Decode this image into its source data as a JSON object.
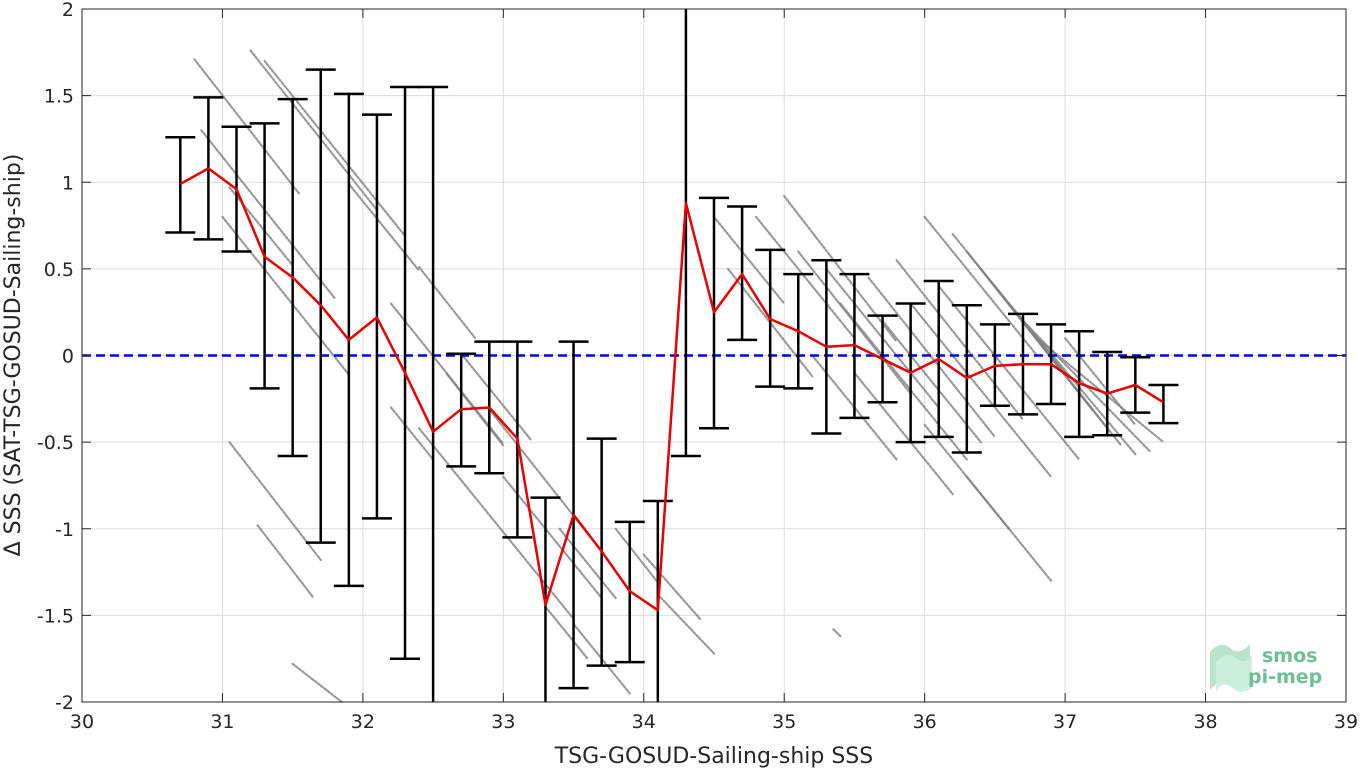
{
  "chart_data": {
    "type": "scatter",
    "xlabel": "TSG-GOSUD-Sailing-ship SSS",
    "ylabel": "Δ SSS (SAT-TSG-GOSUD-Sailing-ship)",
    "xlim": [
      30,
      39
    ],
    "ylim": [
      -2,
      2
    ],
    "x_ticks": [
      "30",
      "31",
      "32",
      "33",
      "34",
      "35",
      "36",
      "37",
      "38",
      "39"
    ],
    "y_ticks": [
      "2",
      "1.5",
      "1",
      "0.5",
      "0",
      "-0.5",
      "-1",
      "-1.5",
      "-2"
    ],
    "grid": true,
    "reference_line": {
      "y": 0,
      "style": "dashed",
      "color": "#0000e6"
    },
    "series": [
      {
        "kind": "binned-mean-with-errorbars",
        "color": "#e60000",
        "errorbar_color": "#000000",
        "x": [
          30.7,
          30.9,
          31.1,
          31.3,
          31.5,
          31.7,
          31.9,
          32.1,
          32.3,
          32.5,
          32.7,
          32.9,
          33.1,
          33.3,
          33.5,
          33.7,
          33.9,
          34.1,
          34.3,
          34.5,
          34.7,
          34.9,
          35.1,
          35.3,
          35.5,
          35.7,
          35.9,
          36.1,
          36.3,
          36.5,
          36.7,
          36.9,
          37.1,
          37.3,
          37.5,
          37.7
        ],
        "y": [
          0.99,
          1.08,
          0.96,
          0.57,
          0.45,
          0.29,
          0.09,
          0.22,
          -0.1,
          -0.44,
          -0.31,
          -0.3,
          -0.48,
          -1.44,
          -0.92,
          -1.13,
          -1.36,
          -1.47,
          0.88,
          0.25,
          0.47,
          0.21,
          0.14,
          0.05,
          0.06,
          -0.02,
          -0.1,
          -0.02,
          -0.13,
          -0.06,
          -0.05,
          -0.05,
          -0.16,
          -0.22,
          -0.17,
          -0.27
        ],
        "upper": [
          1.26,
          1.49,
          1.32,
          1.34,
          1.48,
          1.65,
          1.51,
          1.39,
          1.55,
          1.55,
          0.01,
          0.08,
          0.08,
          -0.82,
          0.08,
          -0.48,
          -0.96,
          -0.84,
          2.0,
          0.91,
          0.86,
          0.61,
          0.47,
          0.55,
          0.47,
          0.23,
          0.3,
          0.43,
          0.29,
          0.18,
          0.24,
          0.18,
          0.14,
          0.02,
          -0.01,
          -0.17
        ],
        "lower": [
          0.71,
          0.67,
          0.6,
          -0.19,
          -0.58,
          -1.08,
          -1.33,
          -0.94,
          -1.75,
          -2.0,
          -0.64,
          -0.68,
          -1.05,
          -2.0,
          -1.92,
          -1.79,
          -1.77,
          -2.0,
          -0.58,
          -0.42,
          0.09,
          -0.18,
          -0.19,
          -0.45,
          -0.36,
          -0.27,
          -0.5,
          -0.47,
          -0.56,
          -0.29,
          -0.34,
          -0.28,
          -0.47,
          -0.46,
          -0.33,
          -0.39
        ]
      },
      {
        "kind": "raw-points",
        "color": "#808080",
        "segments": [
          {
            "x0": 30.8,
            "y0": 1.71,
            "x1": 31.55,
            "y1": 0.93
          },
          {
            "x0": 31.2,
            "y0": 1.76,
            "x1": 32.1,
            "y1": 0.84
          },
          {
            "x0": 31.3,
            "y0": 1.7,
            "x1": 32.3,
            "y1": 0.69
          },
          {
            "x0": 30.85,
            "y0": 1.3,
            "x1": 31.8,
            "y1": 0.33
          },
          {
            "x0": 31.05,
            "y0": 0.97,
            "x1": 31.5,
            "y1": 0.52
          },
          {
            "x0": 31.0,
            "y0": 0.8,
            "x1": 31.9,
            "y1": -0.11
          },
          {
            "x0": 31.9,
            "y0": 0.99,
            "x1": 32.4,
            "y1": 0.49
          },
          {
            "x0": 32.4,
            "y0": 0.51,
            "x1": 32.8,
            "y1": 0.1
          },
          {
            "x0": 32.6,
            "y0": -0.11,
            "x1": 33.0,
            "y1": -0.52
          },
          {
            "x0": 32.7,
            "y0": 0.01,
            "x1": 33.2,
            "y1": -0.49
          },
          {
            "x0": 32.9,
            "y0": -0.31,
            "x1": 33.7,
            "y1": -1.13
          },
          {
            "x0": 32.4,
            "y0": -0.42,
            "x1": 33.5,
            "y1": -1.52
          },
          {
            "x0": 32.2,
            "y0": 0.3,
            "x1": 33.0,
            "y1": -0.51
          },
          {
            "x0": 33.0,
            "y0": -0.7,
            "x1": 33.7,
            "y1": -1.4
          },
          {
            "x0": 33.4,
            "y0": -1.0,
            "x1": 33.8,
            "y1": -1.4
          },
          {
            "x0": 33.5,
            "y0": -1.55,
            "x1": 33.9,
            "y1": -1.95
          },
          {
            "x0": 33.3,
            "y0": -1.45,
            "x1": 33.6,
            "y1": -1.75
          },
          {
            "x0": 33.8,
            "y0": -1.0,
            "x1": 34.1,
            "y1": -1.31
          },
          {
            "x0": 34.0,
            "y0": -1.15,
            "x1": 34.4,
            "y1": -1.52
          },
          {
            "x0": 34.1,
            "y0": -1.38,
            "x1": 34.5,
            "y1": -1.72
          },
          {
            "x0": 31.05,
            "y0": -0.5,
            "x1": 31.7,
            "y1": -1.18
          },
          {
            "x0": 31.25,
            "y0": -0.98,
            "x1": 31.65,
            "y1": -1.4
          },
          {
            "x0": 31.5,
            "y0": -1.78,
            "x1": 31.85,
            "y1": -2.0
          },
          {
            "x0": 32.2,
            "y0": -0.3,
            "x1": 32.5,
            "y1": -0.6
          },
          {
            "x0": 34.5,
            "y0": 0.8,
            "x1": 35.0,
            "y1": 0.3
          },
          {
            "x0": 34.6,
            "y0": 0.5,
            "x1": 35.2,
            "y1": -0.12
          },
          {
            "x0": 34.8,
            "y0": 0.8,
            "x1": 35.5,
            "y1": 0.1
          },
          {
            "x0": 35.0,
            "y0": 0.92,
            "x1": 35.8,
            "y1": 0.08
          },
          {
            "x0": 35.1,
            "y0": 0.6,
            "x1": 35.9,
            "y1": -0.22
          },
          {
            "x0": 35.3,
            "y0": 0.5,
            "x1": 36.1,
            "y1": -0.3
          },
          {
            "x0": 35.4,
            "y0": 0.3,
            "x1": 36.3,
            "y1": -0.6
          },
          {
            "x0": 35.6,
            "y0": 0.45,
            "x1": 36.5,
            "y1": -0.47
          },
          {
            "x0": 35.8,
            "y0": 0.55,
            "x1": 36.7,
            "y1": -0.37
          },
          {
            "x0": 35.9,
            "y0": 0.3,
            "x1": 36.9,
            "y1": -0.7
          },
          {
            "x0": 36.0,
            "y0": 0.8,
            "x1": 36.8,
            "y1": 0.0
          },
          {
            "x0": 36.1,
            "y0": 0.4,
            "x1": 37.1,
            "y1": -0.6
          },
          {
            "x0": 36.2,
            "y0": 0.7,
            "x1": 37.0,
            "y1": -0.1
          },
          {
            "x0": 36.3,
            "y0": 0.6,
            "x1": 37.2,
            "y1": -0.32
          },
          {
            "x0": 36.4,
            "y0": 0.5,
            "x1": 37.3,
            "y1": -0.42
          },
          {
            "x0": 36.5,
            "y0": 0.4,
            "x1": 37.4,
            "y1": -0.52
          },
          {
            "x0": 36.6,
            "y0": 0.3,
            "x1": 37.5,
            "y1": -0.57
          },
          {
            "x0": 36.7,
            "y0": 0.2,
            "x1": 37.6,
            "y1": -0.55
          },
          {
            "x0": 36.8,
            "y0": 0.1,
            "x1": 37.7,
            "y1": -0.5
          },
          {
            "x0": 35.2,
            "y0": 0.0,
            "x1": 35.8,
            "y1": -0.6
          },
          {
            "x0": 35.5,
            "y0": -0.1,
            "x1": 36.2,
            "y1": -0.8
          },
          {
            "x0": 36.0,
            "y0": -0.4,
            "x1": 36.6,
            "y1": -1.0
          },
          {
            "x0": 36.3,
            "y0": -0.7,
            "x1": 36.9,
            "y1": -1.3
          },
          {
            "x0": 35.7,
            "y0": 0.2,
            "x1": 36.4,
            "y1": -0.5
          },
          {
            "x0": 37.0,
            "y0": 0.1,
            "x1": 37.5,
            "y1": -0.4
          },
          {
            "x0": 35.35,
            "y0": -1.58,
            "x1": 35.4,
            "y1": -1.62
          }
        ]
      }
    ]
  },
  "watermark": {
    "line1": "smos",
    "line2": "pi-mep"
  }
}
